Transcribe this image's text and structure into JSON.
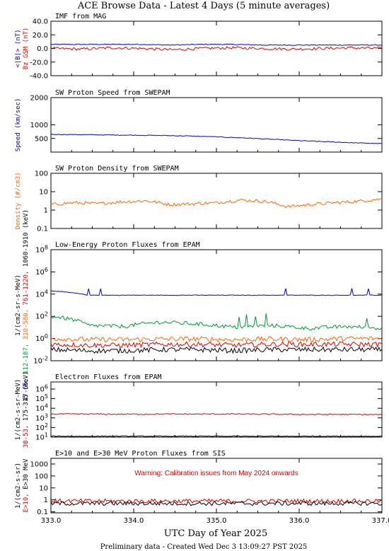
{
  "page_title": "ACE Browse Data - Latest 4 Days (5 minute averages)",
  "footer": "Preliminary data - Created Wed Dec  3 13:09:27 PST 2025",
  "colors": {
    "blue": "#0000cc",
    "red": "#e00000",
    "green": "#009933",
    "orange": "#ff6600",
    "black": "#000000"
  },
  "chart_data": [
    {
      "type": "line",
      "title": "IMF from MAG",
      "ylim": [
        -40,
        40
      ],
      "yticks": [
        "40.0",
        "20.0",
        "0.0",
        "-20.0",
        "-40.0"
      ],
      "ylabel_parts": [
        {
          "text": "<|B|> (nT)",
          "color": "#0000cc"
        },
        {
          "text": "Bz GSM (nT)",
          "color": "#e00000"
        }
      ],
      "series": [
        {
          "name": "<|B|>",
          "color": "#0000cc",
          "y": [
            6,
            6,
            6,
            6,
            5,
            6,
            6,
            5,
            5,
            5,
            5,
            5
          ]
        },
        {
          "name": "Bz GSM",
          "color": "#e00000",
          "y": [
            0,
            -1,
            1,
            0,
            -2,
            0,
            1,
            0,
            -1,
            0,
            1,
            0
          ]
        }
      ]
    },
    {
      "type": "line",
      "title": "SW Proton Speed from SWEPAM",
      "ylim": [
        0,
        2000
      ],
      "yticks": [
        "2000",
        "1000",
        "500"
      ],
      "ylabel_parts": [
        {
          "text": "Speed (km/sec)",
          "color": "#0000cc"
        }
      ],
      "series": [
        {
          "name": "Speed",
          "color": "#0000cc",
          "y": [
            650,
            640,
            630,
            620,
            610,
            590,
            560,
            520,
            470,
            420,
            380,
            340,
            310
          ]
        }
      ]
    },
    {
      "type": "line",
      "title": "SW Proton Density from SWEPAM",
      "log": true,
      "yticks": [
        "100",
        "10",
        "1",
        "0.1"
      ],
      "ylabel_parts": [
        {
          "text": "Density (#/cm3)",
          "color": "#ff6600"
        }
      ],
      "series": [
        {
          "name": "Density",
          "color": "#ff6600",
          "y": [
            2.0,
            2.5,
            2.2,
            2.8,
            3.2,
            2.0,
            2.2,
            2.5,
            3.5,
            3.0,
            1.5,
            2.0,
            2.5,
            3.0,
            4.0
          ]
        }
      ]
    },
    {
      "type": "line",
      "title": "Low-Energy Proton Fluxes from EPAM",
      "log": true,
      "yticks": [
        "10^8",
        "10^6",
        "10^4",
        "10^2",
        "10^0",
        "10^-2"
      ],
      "ylabel_parts": [
        {
          "text": "1/(cm2-sr-s-MeV)",
          "color": "#000000"
        },
        {
          "text": "47-65, ",
          "color": "#0000cc"
        },
        {
          "text": "112-187, ",
          "color": "#009933"
        },
        {
          "text": "310-580, ",
          "color": "#ff6600"
        },
        {
          "text": "761-1220, ",
          "color": "#e00000"
        },
        {
          "text": "1060-1910 (keV)",
          "color": "#000000"
        }
      ],
      "series": [
        {
          "name": "47-65",
          "color": "#0000cc",
          "y": [
            20000,
            8000,
            8000,
            8000,
            8000,
            8000,
            8000,
            8000,
            8000,
            8000
          ]
        },
        {
          "name": "112-187",
          "color": "#009933",
          "y": [
            100,
            15,
            12,
            30,
            20,
            10,
            15,
            8,
            12,
            8
          ]
        },
        {
          "name": "310-580",
          "color": "#ff6600",
          "y": [
            1.0,
            0.8,
            0.8,
            0.9,
            0.9,
            0.8,
            0.9,
            0.8,
            1.0,
            1.0
          ]
        },
        {
          "name": "761-1220",
          "color": "#e00000",
          "y": [
            0.3,
            0.25,
            0.25,
            0.3,
            0.3,
            0.25,
            0.3,
            0.3,
            0.3,
            0.3
          ]
        },
        {
          "name": "1060-1910",
          "color": "#000000",
          "y": [
            0.1,
            0.08,
            0.08,
            0.1,
            0.1,
            0.08,
            0.1,
            0.1,
            0.1,
            0.1
          ]
        }
      ]
    },
    {
      "type": "line",
      "title": "Electron Fluxes from EPAM",
      "log": true,
      "yticks": [
        "10^6",
        "10^5",
        "10^4",
        "10^3",
        "10^2",
        "10^1"
      ],
      "ylabel_parts": [
        {
          "text": "1/(cm2-s-sr-MeV)",
          "color": "#000000"
        },
        {
          "text": "38-53, ",
          "color": "#e00000"
        },
        {
          "text": "175-315 (keV)",
          "color": "#000000"
        }
      ],
      "series": [
        {
          "name": "38-53",
          "color": "#e00000",
          "y": [
            2500,
            2500,
            2400,
            2500,
            2500,
            2500,
            2400,
            2300,
            2300,
            2200
          ]
        },
        {
          "name": "175-315",
          "color": "#000000",
          "y": [
            12,
            12,
            12,
            12,
            12,
            12,
            12,
            12,
            12,
            12
          ]
        }
      ]
    },
    {
      "type": "line",
      "title": "E>10 and E>30 MeV Proton Fluxes from SIS",
      "log": true,
      "annotation": "Warning: Calibration issues from May 2024 onwards",
      "yticks": [
        "1000",
        "100",
        "10",
        "1",
        "0.1"
      ],
      "ylabel_parts": [
        {
          "text": "1/(cm2-s-sr)",
          "color": "#000000"
        },
        {
          "text": "E>10, ",
          "color": "#e00000"
        },
        {
          "text": "E>30 MeV",
          "color": "#000000"
        }
      ],
      "series": [
        {
          "name": "E>10",
          "color": "#e00000",
          "y": [
            0.8,
            0.8,
            0.8,
            0.8,
            0.8,
            0.8,
            0.8,
            0.8
          ]
        },
        {
          "name": "E>30",
          "color": "#000000",
          "y": [
            0.5,
            0.5,
            0.5,
            0.5,
            0.5,
            0.5,
            0.5,
            0.5
          ]
        }
      ]
    }
  ],
  "x_axis": {
    "label": "UTC Day of Year 2025",
    "ticks": [
      "333.0",
      "334.0",
      "335.0",
      "336.0",
      "337.0"
    ],
    "xlim": [
      333.0,
      337.0
    ]
  }
}
